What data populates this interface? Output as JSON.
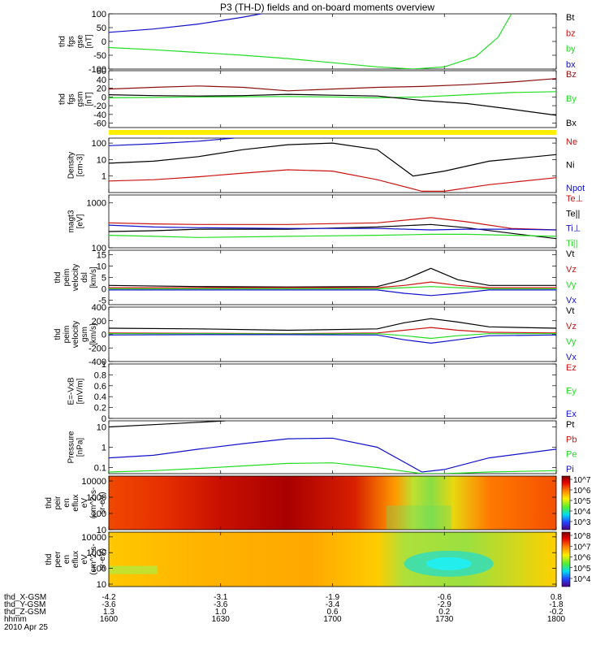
{
  "title": "P3 (TH-D) fields and on-board moments overview",
  "colors": {
    "black": "#000000",
    "red": "#cc1111",
    "green": "#22dd22",
    "blue": "#1111cc",
    "darkred": "#8b1010",
    "yellow": "#ffee00"
  },
  "chart_data": [
    {
      "id": "fgs_gse",
      "type": "line",
      "ylabel": [
        "thd",
        "fgs",
        "gse",
        "[nT]"
      ],
      "ylim": [
        -100,
        100
      ],
      "yticks": [
        100,
        50,
        0,
        -50,
        -100
      ],
      "legend": [
        {
          "label": "Bt",
          "color": "black"
        },
        {
          "label": "bz",
          "color": "red"
        },
        {
          "label": "by",
          "color": "green"
        },
        {
          "label": "bx",
          "color": "blue"
        }
      ],
      "series": [
        {
          "color": "blue",
          "x": [
            0,
            0.1,
            0.2,
            0.3,
            0.35
          ],
          "y": [
            33,
            45,
            63,
            88,
            103
          ]
        },
        {
          "color": "green",
          "x": [
            0,
            0.1,
            0.2,
            0.3,
            0.4,
            0.5,
            0.6,
            0.68,
            0.75,
            0.82,
            0.87,
            0.9
          ],
          "y": [
            -22,
            -30,
            -40,
            -50,
            -62,
            -77,
            -92,
            -100,
            -92,
            -55,
            15,
            100
          ]
        }
      ]
    },
    {
      "id": "fgs_gsm",
      "type": "line",
      "ylabel": [
        "thd",
        "fgs",
        "gsm",
        "[nT]"
      ],
      "ylim": [
        -70,
        60
      ],
      "yticks": [
        60,
        40,
        20,
        0,
        -20,
        -40,
        -60
      ],
      "legend": [
        {
          "label": "Bz",
          "color": "darkred"
        },
        {
          "label": "By",
          "color": "green"
        },
        {
          "label": "Bx",
          "color": "black"
        }
      ],
      "series": [
        {
          "color": "darkred",
          "x": [
            0,
            0.1,
            0.2,
            0.3,
            0.4,
            0.5,
            0.6,
            0.7,
            0.8,
            0.9,
            1
          ],
          "y": [
            18,
            22,
            25,
            22,
            14,
            18,
            22,
            24,
            28,
            34,
            42
          ]
        },
        {
          "color": "green",
          "x": [
            0,
            0.2,
            0.4,
            0.5,
            0.6,
            0.7,
            0.8,
            0.9,
            1
          ],
          "y": [
            -2,
            0,
            1,
            0,
            -2,
            0,
            5,
            10,
            12
          ]
        },
        {
          "color": "black",
          "x": [
            0,
            0.1,
            0.2,
            0.3,
            0.4,
            0.5,
            0.6,
            0.7,
            0.8,
            0.9,
            1
          ],
          "y": [
            5,
            3,
            2,
            3,
            6,
            4,
            2,
            -8,
            -15,
            -28,
            -42
          ]
        }
      ]
    },
    {
      "id": "density",
      "type": "line",
      "scale": "log",
      "ylabel": [
        "Density",
        "[cm-3]"
      ],
      "ylim": [
        0.1,
        200
      ],
      "yticks": [
        100,
        10,
        1
      ],
      "legend": [
        {
          "label": "Ne",
          "color": "red"
        },
        {
          "label": "Ni",
          "color": "black"
        },
        {
          "label": "Npot",
          "color": "blue"
        }
      ],
      "series": [
        {
          "color": "blue",
          "x": [
            0,
            0.1,
            0.2,
            0.28
          ],
          "y": [
            70,
            90,
            130,
            200
          ]
        },
        {
          "color": "black",
          "x": [
            0,
            0.1,
            0.2,
            0.3,
            0.4,
            0.5,
            0.6,
            0.68,
            0.75,
            0.85,
            1
          ],
          "y": [
            6,
            8,
            15,
            40,
            80,
            100,
            40,
            1,
            2,
            8,
            20
          ]
        },
        {
          "color": "red",
          "x": [
            0,
            0.1,
            0.2,
            0.3,
            0.4,
            0.5,
            0.6,
            0.7,
            0.75,
            0.85,
            1
          ],
          "y": [
            0.5,
            0.6,
            0.9,
            1.5,
            2.4,
            2.0,
            0.6,
            0.12,
            0.12,
            0.3,
            0.8
          ]
        }
      ]
    },
    {
      "id": "temperature",
      "type": "line",
      "scale": "log",
      "ylabel": [
        "magt3",
        "[eV]"
      ],
      "ylim": [
        100,
        1500
      ],
      "yticks": [
        1000,
        100
      ],
      "legend": [
        {
          "label": "Te⊥",
          "color": "red"
        },
        {
          "label": "Te||",
          "color": "black"
        },
        {
          "label": "Ti⊥",
          "color": "blue"
        },
        {
          "label": "Ti||",
          "color": "green"
        }
      ],
      "series": [
        {
          "color": "red",
          "x": [
            0,
            0.1,
            0.2,
            0.4,
            0.6,
            0.72,
            0.8,
            0.9,
            1
          ],
          "y": [
            360,
            340,
            330,
            330,
            360,
            470,
            380,
            270,
            250
          ]
        },
        {
          "color": "black",
          "x": [
            0,
            0.1,
            0.2,
            0.4,
            0.6,
            0.72,
            0.8,
            0.9,
            1
          ],
          "y": [
            230,
            240,
            260,
            260,
            290,
            330,
            280,
            210,
            160
          ]
        },
        {
          "color": "blue",
          "x": [
            0,
            0.1,
            0.2,
            0.4,
            0.6,
            0.72,
            0.8,
            0.9,
            1
          ],
          "y": [
            320,
            290,
            280,
            270,
            270,
            250,
            260,
            260,
            250
          ]
        },
        {
          "color": "green",
          "x": [
            0,
            0.1,
            0.2,
            0.4,
            0.6,
            0.72,
            0.8,
            0.9,
            1
          ],
          "y": [
            190,
            180,
            170,
            180,
            190,
            200,
            200,
            190,
            180
          ]
        }
      ]
    },
    {
      "id": "peim_dsl",
      "type": "line",
      "ylabel": [
        "thd",
        "peim",
        "velocity",
        "dsl",
        "[km/s]"
      ],
      "ylim": [
        -7,
        17
      ],
      "yticks": [
        15,
        10,
        5,
        0,
        -5
      ],
      "legend": [
        {
          "label": "Vt",
          "color": "black"
        },
        {
          "label": "Vz",
          "color": "red"
        },
        {
          "label": "Vy",
          "color": "green"
        },
        {
          "label": "Vx",
          "color": "blue"
        }
      ],
      "series": [
        {
          "color": "black",
          "x": [
            0,
            0.2,
            0.4,
            0.6,
            0.66,
            0.72,
            0.78,
            0.85,
            1
          ],
          "y": [
            1.5,
            1.0,
            0.8,
            1.0,
            4,
            9,
            4,
            1.5,
            1.5
          ]
        },
        {
          "color": "red",
          "x": [
            0,
            0.2,
            0.4,
            0.6,
            0.66,
            0.72,
            0.78,
            0.85,
            1
          ],
          "y": [
            0.5,
            0.5,
            0.5,
            0.5,
            1.5,
            3,
            1.5,
            0.5,
            0.5
          ]
        },
        {
          "color": "green",
          "x": [
            0,
            0.2,
            0.4,
            0.6,
            0.66,
            0.72,
            0.78,
            0.85,
            1
          ],
          "y": [
            0,
            0,
            0,
            0,
            0.5,
            1,
            0.5,
            0,
            0
          ]
        },
        {
          "color": "blue",
          "x": [
            0,
            0.2,
            0.4,
            0.6,
            0.66,
            0.72,
            0.78,
            0.85,
            1
          ],
          "y": [
            -0.5,
            -0.5,
            -0.5,
            -0.5,
            -2,
            -3,
            -2,
            -0.5,
            -0.5
          ]
        }
      ]
    },
    {
      "id": "peim_gsm",
      "type": "line",
      "ylabel": [
        "thd",
        "peim",
        "velocity",
        "gsm",
        "[km/s]"
      ],
      "ylim": [
        -400,
        400
      ],
      "yticks": [
        400,
        200,
        0,
        -200,
        -400
      ],
      "legend": [
        {
          "label": "Vt",
          "color": "black"
        },
        {
          "label": "Vz",
          "color": "red"
        },
        {
          "label": "Vy",
          "color": "green"
        },
        {
          "label": "Vx",
          "color": "blue"
        }
      ],
      "series": [
        {
          "color": "black",
          "x": [
            0,
            0.2,
            0.4,
            0.6,
            0.66,
            0.72,
            0.78,
            0.85,
            1
          ],
          "y": [
            90,
            80,
            60,
            80,
            170,
            230,
            180,
            110,
            90
          ]
        },
        {
          "color": "red",
          "x": [
            0,
            0.2,
            0.4,
            0.6,
            0.66,
            0.72,
            0.78,
            0.85,
            1
          ],
          "y": [
            20,
            15,
            10,
            20,
            60,
            100,
            60,
            30,
            20
          ]
        },
        {
          "color": "green",
          "x": [
            0,
            0.2,
            0.4,
            0.6,
            0.66,
            0.72,
            0.78,
            0.85,
            1
          ],
          "y": [
            10,
            10,
            5,
            10,
            -20,
            -60,
            -20,
            10,
            10
          ]
        },
        {
          "color": "blue",
          "x": [
            0,
            0.2,
            0.4,
            0.6,
            0.66,
            0.72,
            0.78,
            0.85,
            1
          ],
          "y": [
            -10,
            -5,
            -5,
            -10,
            -80,
            -130,
            -80,
            -20,
            -10
          ]
        }
      ]
    },
    {
      "id": "efield",
      "type": "line",
      "ylabel": [
        "E=-VxB",
        "[mV/m]"
      ],
      "ylim": [
        0,
        1
      ],
      "yticks": [
        1.0,
        0.8,
        0.6,
        0.4,
        0.2,
        0.0
      ],
      "legend": [
        {
          "label": "Ez",
          "color": "red"
        },
        {
          "label": "Ey",
          "color": "green"
        },
        {
          "label": "Ex",
          "color": "blue"
        }
      ],
      "series": []
    },
    {
      "id": "pressure",
      "type": "line",
      "scale": "log",
      "ylabel": [
        "Pressure",
        "[nPa]"
      ],
      "ylim": [
        0.05,
        20
      ],
      "yticks": [
        10.0,
        1.0,
        0.1
      ],
      "legend": [
        {
          "label": "Pt",
          "color": "black"
        },
        {
          "label": "Pb",
          "color": "red"
        },
        {
          "label": "Pe",
          "color": "green"
        },
        {
          "label": "Pi",
          "color": "blue"
        }
      ],
      "series": [
        {
          "color": "black",
          "x": [
            0,
            0.1,
            0.2,
            0.26
          ],
          "y": [
            10,
            13,
            17,
            20
          ]
        },
        {
          "color": "blue",
          "x": [
            0,
            0.1,
            0.2,
            0.3,
            0.4,
            0.5,
            0.6,
            0.7,
            0.75,
            0.85,
            1
          ],
          "y": [
            0.3,
            0.4,
            0.8,
            1.5,
            2.6,
            2.8,
            1.0,
            0.06,
            0.08,
            0.3,
            0.8
          ]
        },
        {
          "color": "green",
          "x": [
            0,
            0.1,
            0.2,
            0.3,
            0.4,
            0.5,
            0.6,
            0.7,
            0.75,
            0.85,
            1
          ],
          "y": [
            0.06,
            0.07,
            0.09,
            0.12,
            0.16,
            0.17,
            0.1,
            0.05,
            0.05,
            0.06,
            0.07
          ]
        }
      ]
    },
    {
      "id": "peir",
      "type": "heatmap",
      "scale": "log",
      "ylabel": [
        "thd",
        "peir",
        "en",
        "eflux",
        "eV",
        "(cm^2-s-",
        "sr-eV)"
      ],
      "ylim": [
        10,
        20000
      ],
      "yticks": [
        10000,
        1000,
        100,
        10
      ],
      "colorbar": {
        "ticks": [
          "10^7",
          "10^6",
          "10^5",
          "10^4",
          "10^3"
        ]
      }
    },
    {
      "id": "peer",
      "type": "heatmap",
      "scale": "log",
      "ylabel": [
        "thd",
        "peer",
        "en",
        "eflux",
        "eV",
        "(cm^2-s-",
        "sr-eV)"
      ],
      "ylim": [
        7,
        20000
      ],
      "yticks": [
        10000,
        1000,
        100,
        10
      ],
      "colorbar": {
        "ticks": [
          "10^8",
          "10^7",
          "10^6",
          "10^5",
          "10^4"
        ]
      }
    }
  ],
  "ephemeris": {
    "rows": [
      {
        "label": "thd_X-GSM",
        "values": [
          "-4.2",
          "-3.1",
          "-1.9",
          "-0.6",
          "0.8"
        ]
      },
      {
        "label": "thd_Y-GSM",
        "values": [
          "-3.6",
          "-3.6",
          "-3.4",
          "-2.9",
          "-1.8"
        ]
      },
      {
        "label": "thd_Z-GSM",
        "values": [
          "1.3",
          "1.0",
          "0.6",
          "0.2",
          "-0.2"
        ]
      },
      {
        "label": "hhmm",
        "values": [
          "1600",
          "1630",
          "1700",
          "1730",
          "1800"
        ]
      }
    ],
    "date": "2010 Apr 25"
  }
}
